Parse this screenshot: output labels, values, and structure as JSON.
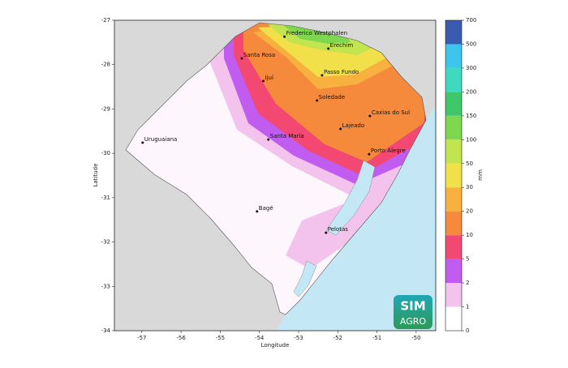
{
  "map": {
    "x_label": "Longitude",
    "y_label": "Latitude",
    "xlim": [
      -57.7,
      -49.5
    ],
    "ylim": [
      -34,
      -27
    ],
    "xticks": [
      -57,
      -56,
      -55,
      -54,
      -53,
      -52,
      -51,
      -50
    ],
    "yticks": [
      -34,
      -33,
      -32,
      -31,
      -30,
      -29,
      -28,
      -27
    ],
    "cities": [
      {
        "name": "Frederico Westphalen",
        "lon": -53.36,
        "lat": -27.37
      },
      {
        "name": "Erechim",
        "lon": -52.24,
        "lat": -27.64
      },
      {
        "name": "Santa Rosa",
        "lon": -54.45,
        "lat": -27.86
      },
      {
        "name": "Passo Fundo",
        "lon": -52.4,
        "lat": -28.24
      },
      {
        "name": "Ijuí",
        "lon": -53.9,
        "lat": -28.37
      },
      {
        "name": "Soledade",
        "lon": -52.53,
        "lat": -28.81
      },
      {
        "name": "Caxias do Sul",
        "lon": -51.18,
        "lat": -29.16
      },
      {
        "name": "Lajeado",
        "lon": -51.93,
        "lat": -29.45
      },
      {
        "name": "Santa Maria",
        "lon": -53.77,
        "lat": -29.69
      },
      {
        "name": "Uruguaiana",
        "lon": -56.98,
        "lat": -29.76
      },
      {
        "name": "Porto Alegre",
        "lon": -51.2,
        "lat": -30.02
      },
      {
        "name": "Bagé",
        "lon": -54.06,
        "lat": -31.31
      },
      {
        "name": "Pelotas",
        "lon": -52.3,
        "lat": -31.79
      }
    ],
    "colorbar": {
      "label": "mm",
      "ticks": [
        0,
        1,
        2,
        5,
        10,
        20,
        30,
        50,
        100,
        150,
        200,
        300,
        500,
        700
      ],
      "colors": [
        "#ffffff",
        "#f3c3ee",
        "#c05cf0",
        "#f24872",
        "#f68a3c",
        "#f8b13e",
        "#f2e04a",
        "#c2e44e",
        "#7dd84e",
        "#3ec86a",
        "#3fd9c0",
        "#3cc6ee",
        "#3a5bb0"
      ]
    },
    "logo": {
      "line1": "SIM",
      "line2": "AGRO"
    }
  }
}
